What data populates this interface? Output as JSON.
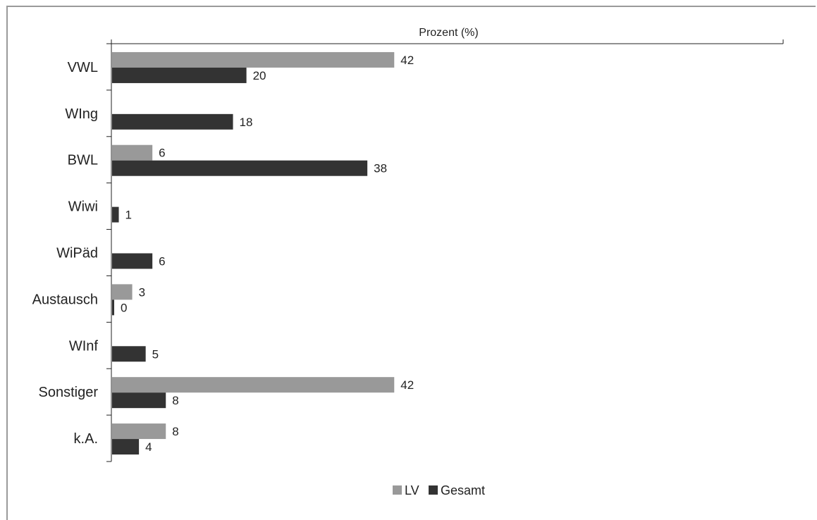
{
  "chart_data": {
    "type": "bar",
    "orientation": "horizontal",
    "xlabel": "Prozent (%)",
    "categories": [
      "VWL",
      "WIng",
      "BWL",
      "Wiwi",
      "WiPäd",
      "Austausch",
      "WInf",
      "Sonstiger",
      "k.A."
    ],
    "series": [
      {
        "name": "LV",
        "color": "#999999",
        "values": [
          42,
          null,
          6,
          null,
          null,
          3,
          null,
          42,
          8
        ]
      },
      {
        "name": "Gesamt",
        "color": "#333333",
        "values": [
          20,
          18,
          38,
          1,
          6,
          0,
          5,
          8,
          4
        ]
      }
    ],
    "xlim": [
      0,
      100
    ],
    "grid": false,
    "legend_position": "bottom-center"
  }
}
